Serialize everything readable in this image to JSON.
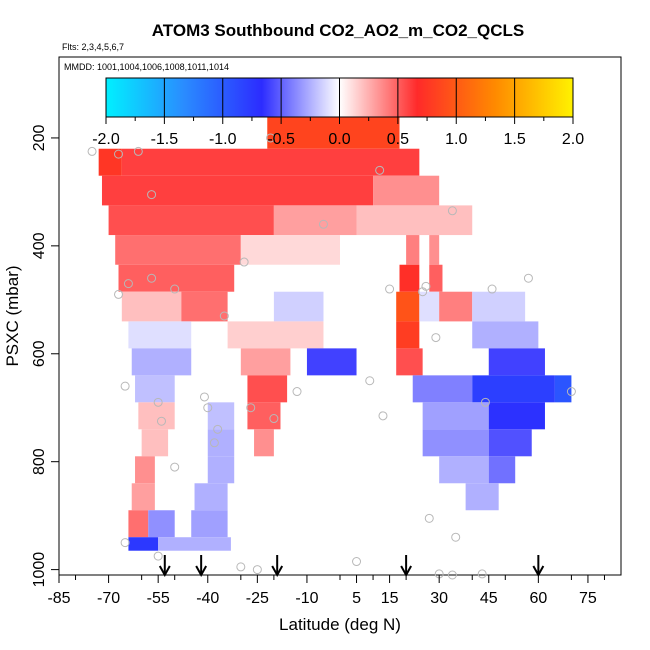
{
  "chart_data": {
    "type": "heatmap",
    "title": "ATOM3 Southbound CO2_AO2_m_CO2_QCLS",
    "flights_note": "Flts: 2,3,4,5,6,7",
    "dates_note": "MMDD: 1001,1004,1006,1008,1011,1014",
    "xlabel": "Latitude (deg N)",
    "ylabel": "PSXC (mbar)",
    "xlim": [
      -85,
      85
    ],
    "ylim": [
      1010,
      50
    ],
    "x_ticks": [
      -85,
      -70,
      -55,
      -40,
      -25,
      -10,
      5,
      15,
      30,
      45,
      60,
      75
    ],
    "x_tick_labels": [
      "-85",
      "-70",
      "-55",
      "-40",
      "-25",
      "-10",
      "5",
      "15",
      "30",
      "45",
      "60",
      "75"
    ],
    "y_ticks": [
      200,
      400,
      600,
      800,
      1000
    ],
    "y_tick_labels": [
      "200",
      "400",
      "600",
      "800",
      "1000"
    ],
    "colorbar": {
      "min": -2.0,
      "max": 2.0,
      "ticks": [
        -2.0,
        -1.5,
        -1.0,
        -0.5,
        0.0,
        0.5,
        1.0,
        1.5,
        2.0
      ],
      "tick_labels": [
        "-2.0",
        "-1.5",
        "-1.0",
        "-0.5",
        "0.0",
        "0.5",
        "1.0",
        "1.5",
        "2.0"
      ],
      "colors": [
        "#00f0ff",
        "#2a8cff",
        "#2c2cff",
        "#ffffff",
        "#ff2a2a",
        "#ff8a00",
        "#fff200"
      ]
    },
    "arrow_latitudes": [
      -53,
      -42,
      -19,
      20,
      60
    ],
    "cells": [
      {
        "x0": -22,
        "x1": 18,
        "p0": 160,
        "p1": 220,
        "v": 0.85
      },
      {
        "x0": -73,
        "x1": -66,
        "p0": 220,
        "p1": 270,
        "v": 0.75
      },
      {
        "x0": -66,
        "x1": 24,
        "p0": 220,
        "p1": 270,
        "v": 0.6
      },
      {
        "x0": -72,
        "x1": 10,
        "p0": 270,
        "p1": 325,
        "v": 0.6
      },
      {
        "x0": 10,
        "x1": 30,
        "p0": 270,
        "p1": 325,
        "v": 0.35
      },
      {
        "x0": -70,
        "x1": -20,
        "p0": 325,
        "p1": 380,
        "v": 0.55
      },
      {
        "x0": -20,
        "x1": 5,
        "p0": 325,
        "p1": 380,
        "v": 0.3
      },
      {
        "x0": 5,
        "x1": 40,
        "p0": 325,
        "p1": 380,
        "v": 0.2
      },
      {
        "x0": -68,
        "x1": -30,
        "p0": 380,
        "p1": 435,
        "v": 0.45
      },
      {
        "x0": -30,
        "x1": 0,
        "p0": 380,
        "p1": 435,
        "v": 0.12
      },
      {
        "x0": 20,
        "x1": 24,
        "p0": 380,
        "p1": 435,
        "v": 0.4
      },
      {
        "x0": 27,
        "x1": 30,
        "p0": 380,
        "p1": 435,
        "v": 0.35
      },
      {
        "x0": -67,
        "x1": -32,
        "p0": 435,
        "p1": 485,
        "v": 0.5
      },
      {
        "x0": 18,
        "x1": 24,
        "p0": 435,
        "p1": 485,
        "v": 0.7
      },
      {
        "x0": 27,
        "x1": 31,
        "p0": 435,
        "p1": 485,
        "v": 0.5
      },
      {
        "x0": -66,
        "x1": -48,
        "p0": 485,
        "p1": 540,
        "v": 0.2
      },
      {
        "x0": -48,
        "x1": -34,
        "p0": 485,
        "p1": 540,
        "v": 0.45
      },
      {
        "x0": -20,
        "x1": -5,
        "p0": 485,
        "p1": 540,
        "v": -0.15
      },
      {
        "x0": 17,
        "x1": 24,
        "p0": 485,
        "p1": 540,
        "v": 0.95
      },
      {
        "x0": 24,
        "x1": 30,
        "p0": 485,
        "p1": 540,
        "v": -0.1
      },
      {
        "x0": 30,
        "x1": 40,
        "p0": 485,
        "p1": 540,
        "v": 0.4
      },
      {
        "x0": 40,
        "x1": 56,
        "p0": 485,
        "p1": 540,
        "v": -0.15
      },
      {
        "x0": -64,
        "x1": -45,
        "p0": 540,
        "p1": 590,
        "v": -0.1
      },
      {
        "x0": -34,
        "x1": -5,
        "p0": 540,
        "p1": 590,
        "v": 0.15
      },
      {
        "x0": 17,
        "x1": 24,
        "p0": 540,
        "p1": 590,
        "v": 0.8
      },
      {
        "x0": 40,
        "x1": 60,
        "p0": 540,
        "p1": 590,
        "v": -0.25
      },
      {
        "x0": -63,
        "x1": -45,
        "p0": 590,
        "p1": 640,
        "v": -0.25
      },
      {
        "x0": -30,
        "x1": -15,
        "p0": 590,
        "p1": 640,
        "v": 0.3
      },
      {
        "x0": -10,
        "x1": 5,
        "p0": 590,
        "p1": 640,
        "v": -0.6
      },
      {
        "x0": 17,
        "x1": 25,
        "p0": 590,
        "p1": 640,
        "v": 0.55
      },
      {
        "x0": 45,
        "x1": 62,
        "p0": 590,
        "p1": 640,
        "v": -0.6
      },
      {
        "x0": -62,
        "x1": -50,
        "p0": 640,
        "p1": 690,
        "v": -0.2
      },
      {
        "x0": -28,
        "x1": -16,
        "p0": 640,
        "p1": 690,
        "v": 0.55
      },
      {
        "x0": 22,
        "x1": 40,
        "p0": 640,
        "p1": 690,
        "v": -0.4
      },
      {
        "x0": 40,
        "x1": 65,
        "p0": 640,
        "p1": 690,
        "v": -0.8
      },
      {
        "x0": 65,
        "x1": 70,
        "p0": 640,
        "p1": 690,
        "v": -0.95
      },
      {
        "x0": -61,
        "x1": -50,
        "p0": 690,
        "p1": 740,
        "v": 0.2
      },
      {
        "x0": -40,
        "x1": -32,
        "p0": 690,
        "p1": 740,
        "v": -0.2
      },
      {
        "x0": -28,
        "x1": -18,
        "p0": 690,
        "p1": 740,
        "v": 0.5
      },
      {
        "x0": 25,
        "x1": 45,
        "p0": 690,
        "p1": 740,
        "v": -0.3
      },
      {
        "x0": 45,
        "x1": 62,
        "p0": 690,
        "p1": 740,
        "v": -0.7
      },
      {
        "x0": -60,
        "x1": -52,
        "p0": 740,
        "p1": 790,
        "v": 0.2
      },
      {
        "x0": -40,
        "x1": -32,
        "p0": 740,
        "p1": 790,
        "v": -0.25
      },
      {
        "x0": -26,
        "x1": -20,
        "p0": 740,
        "p1": 790,
        "v": 0.35
      },
      {
        "x0": 25,
        "x1": 45,
        "p0": 740,
        "p1": 790,
        "v": -0.35
      },
      {
        "x0": 45,
        "x1": 58,
        "p0": 740,
        "p1": 790,
        "v": -0.55
      },
      {
        "x0": -62,
        "x1": -56,
        "p0": 790,
        "p1": 840,
        "v": 0.35
      },
      {
        "x0": -40,
        "x1": -32,
        "p0": 790,
        "p1": 840,
        "v": -0.25
      },
      {
        "x0": 30,
        "x1": 45,
        "p0": 790,
        "p1": 840,
        "v": -0.25
      },
      {
        "x0": 45,
        "x1": 53,
        "p0": 790,
        "p1": 840,
        "v": -0.45
      },
      {
        "x0": -63,
        "x1": -56,
        "p0": 840,
        "p1": 890,
        "v": 0.3
      },
      {
        "x0": -44,
        "x1": -34,
        "p0": 840,
        "p1": 890,
        "v": -0.25
      },
      {
        "x0": 38,
        "x1": 48,
        "p0": 840,
        "p1": 890,
        "v": -0.25
      },
      {
        "x0": -64,
        "x1": -58,
        "p0": 890,
        "p1": 940,
        "v": 0.45
      },
      {
        "x0": -58,
        "x1": -50,
        "p0": 890,
        "p1": 940,
        "v": -0.35
      },
      {
        "x0": -45,
        "x1": -34,
        "p0": 890,
        "p1": 940,
        "v": -0.3
      },
      {
        "x0": -64,
        "x1": -55,
        "p0": 940,
        "p1": 965,
        "v": -0.75
      },
      {
        "x0": -55,
        "x1": -33,
        "p0": 940,
        "p1": 965,
        "v": -0.25
      }
    ],
    "sample_points": [
      {
        "x": -75,
        "p": 225
      },
      {
        "x": -67,
        "p": 230
      },
      {
        "x": -61,
        "p": 225
      },
      {
        "x": -57,
        "p": 305
      },
      {
        "x": -21,
        "p": 200
      },
      {
        "x": 12,
        "p": 260
      },
      {
        "x": -5,
        "p": 360
      },
      {
        "x": 34,
        "p": 335
      },
      {
        "x": -29,
        "p": 430
      },
      {
        "x": -67,
        "p": 490
      },
      {
        "x": -64,
        "p": 470
      },
      {
        "x": -57,
        "p": 460
      },
      {
        "x": -50,
        "p": 480
      },
      {
        "x": -35,
        "p": 530
      },
      {
        "x": 15,
        "p": 480
      },
      {
        "x": 25,
        "p": 485
      },
      {
        "x": 26,
        "p": 475
      },
      {
        "x": 46,
        "p": 480
      },
      {
        "x": 57,
        "p": 460
      },
      {
        "x": 29,
        "p": 570
      },
      {
        "x": 44,
        "p": 690
      },
      {
        "x": 70,
        "p": 670
      },
      {
        "x": 9,
        "p": 650
      },
      {
        "x": -13,
        "p": 670
      },
      {
        "x": -65,
        "p": 660
      },
      {
        "x": -55,
        "p": 690
      },
      {
        "x": -41,
        "p": 680
      },
      {
        "x": -40,
        "p": 700
      },
      {
        "x": -27,
        "p": 700
      },
      {
        "x": -20,
        "p": 720
      },
      {
        "x": -37,
        "p": 740
      },
      {
        "x": -54,
        "p": 725
      },
      {
        "x": -38,
        "p": 765
      },
      {
        "x": 13,
        "p": 715
      },
      {
        "x": -50,
        "p": 810
      },
      {
        "x": 27,
        "p": 905
      },
      {
        "x": 35,
        "p": 940
      },
      {
        "x": -65,
        "p": 950
      },
      {
        "x": -55,
        "p": 975
      },
      {
        "x": -30,
        "p": 995
      },
      {
        "x": -25,
        "p": 1000
      },
      {
        "x": 5,
        "p": 985
      },
      {
        "x": 30,
        "p": 1008
      },
      {
        "x": 34,
        "p": 1010
      },
      {
        "x": 43,
        "p": 1008
      }
    ]
  }
}
